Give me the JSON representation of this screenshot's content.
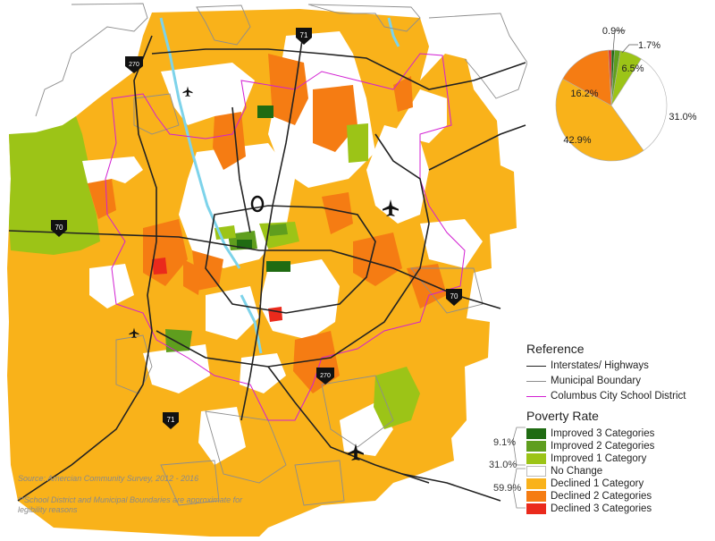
{
  "map": {
    "shields": {
      "i71_north": "71",
      "i270_nw": "270",
      "i70_west": "70",
      "i70_east": "70",
      "i270_south": "270",
      "i71_south": "71"
    },
    "colors": {
      "improved3": "#1f6b12",
      "improved2": "#5f9e1e",
      "improved1": "#9cc417",
      "no_change": "#ffffff",
      "declined1": "#f9b21a",
      "declined2": "#f57c13",
      "declined3": "#ea2a1c",
      "highway": "#222222",
      "municipal": "#8d8d8d",
      "school_district": "#d21fd2",
      "water": "#7dd3ea"
    }
  },
  "pie": {
    "slices": [
      {
        "label": "0.9%",
        "value": 0.9,
        "color": "#1f6b12"
      },
      {
        "label": "1.7%",
        "value": 1.7,
        "color": "#5f9e1e"
      },
      {
        "label": "6.5%",
        "value": 6.5,
        "color": "#9cc417"
      },
      {
        "label": "31.0%",
        "value": 31.0,
        "color": "#ffffff"
      },
      {
        "label": "42.9%",
        "value": 42.9,
        "color": "#f9b21a"
      },
      {
        "label": "16.2%",
        "value": 16.2,
        "color": "#f57c13"
      },
      {
        "label": "",
        "value": 0.8,
        "color": "#ea2a1c"
      }
    ]
  },
  "legend": {
    "reference_title": "Reference",
    "reference_items": [
      {
        "label": "Interstates/ Highways",
        "color": "#222222"
      },
      {
        "label": "Municipal Boundary",
        "color": "#8d8d8d"
      },
      {
        "label": "Columbus City School District",
        "color": "#d21fd2"
      }
    ],
    "poverty_title": "Poverty Rate",
    "poverty_items": [
      {
        "label": "Improved 3 Categories",
        "color": "#1f6b12"
      },
      {
        "label": "Improved 2 Categories",
        "color": "#5f9e1e"
      },
      {
        "label": "Improved 1 Category",
        "color": "#9cc417"
      },
      {
        "label": "No Change",
        "color": "#ffffff"
      },
      {
        "label": "Declined 1 Category",
        "color": "#f9b21a"
      },
      {
        "label": "Declined 2 Categories",
        "color": "#f57c13"
      },
      {
        "label": "Declined 3 Categories",
        "color": "#ea2a1c"
      }
    ],
    "group_improved": "9.1%",
    "group_no_change": "31.0%",
    "group_declined": "59.9%"
  },
  "notes": {
    "source": "Source:  Amercian Community Survey, 2012 - 2016",
    "disclaimer_line1": "**School District and Municipal Boundaries are approximate for",
    "disclaimer_line2": "legibility reasons"
  }
}
